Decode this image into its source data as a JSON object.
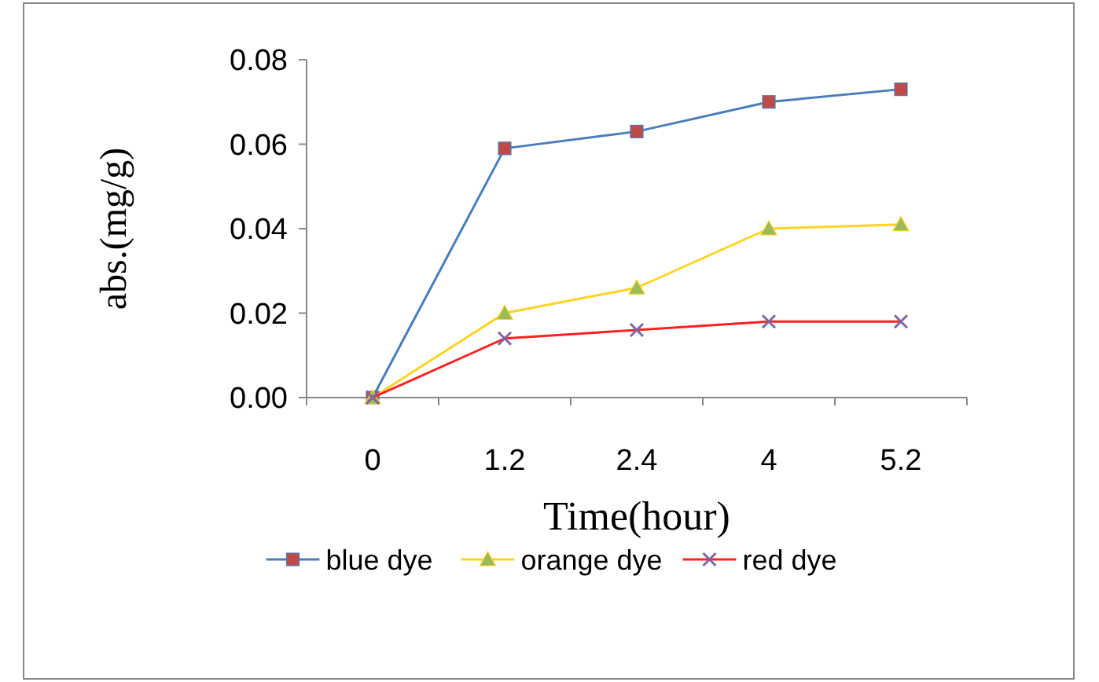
{
  "chart_data": {
    "type": "line",
    "xlabel": "Time(hour)",
    "ylabel": "abs.(mg/g)",
    "categories": [
      "0",
      "1.2",
      "2.4",
      "4",
      "5.2"
    ],
    "ylim": [
      0,
      0.08
    ],
    "yticks": [
      {
        "value": 0,
        "label": "0.00"
      },
      {
        "value": 0.02,
        "label": "0.02"
      },
      {
        "value": 0.04,
        "label": "0.04"
      },
      {
        "value": 0.06,
        "label": "0.06"
      },
      {
        "value": 0.08,
        "label": "0.08"
      }
    ],
    "grid": false,
    "legend": "bottom",
    "line_style": "solid",
    "series": [
      {
        "name": "blue dye",
        "color": "#4a7ebb",
        "marker": "square",
        "values": [
          0,
          0.059,
          0.063,
          0.07,
          0.073
        ]
      },
      {
        "name": "orange dye",
        "color": "#ffd320",
        "marker": "triangle",
        "values": [
          0,
          0.02,
          0.026,
          0.04,
          0.041
        ]
      },
      {
        "name": "red dye",
        "color": "#ff2020",
        "marker": "cross",
        "values": [
          0,
          0.014,
          0.016,
          0.018,
          0.018
        ]
      }
    ]
  }
}
